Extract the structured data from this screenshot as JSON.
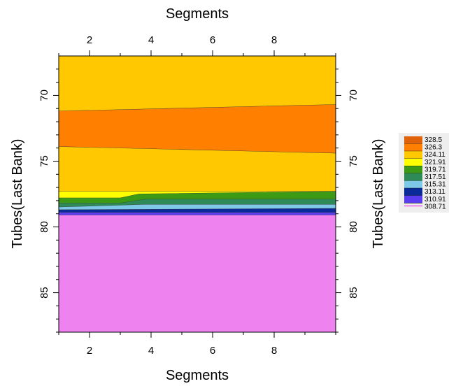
{
  "chart_data": {
    "type": "heatmap",
    "subtype": "filled-contour",
    "xlabel_top": "Segments",
    "xlabel_bottom": "Segments",
    "ylabel_left": "Tubes(Last Bank)",
    "ylabel_right": "Tubes(Last Bank)",
    "x_range": [
      1,
      10
    ],
    "y_range": [
      88,
      67
    ],
    "y_reversed": true,
    "x_ticks": [
      2,
      4,
      6,
      8
    ],
    "x_tick_labels": [
      "2",
      "4",
      "6",
      "8"
    ],
    "y_ticks": [
      70,
      75,
      80,
      85
    ],
    "y_tick_labels": [
      "70",
      "75",
      "80",
      "85"
    ],
    "legend": {
      "placement": "right",
      "levels": [
        {
          "label": "328.5",
          "color": "#e0620a"
        },
        {
          "label": "326.3",
          "color": "#ff8000"
        },
        {
          "label": "324.11",
          "color": "#ffc800"
        },
        {
          "label": "321.91",
          "color": "#ffff00"
        },
        {
          "label": "319.71",
          "color": "#3c9a14"
        },
        {
          "label": "317.51",
          "color": "#2e8b57"
        },
        {
          "label": "315.31",
          "color": "#7ec8e8"
        },
        {
          "label": "313.11",
          "color": "#0a2a9a"
        },
        {
          "label": "310.91",
          "color": "#5a3cf0"
        },
        {
          "label": "308.71",
          "color": "#ee82ee"
        }
      ]
    },
    "bands": [
      {
        "color": "#ffc800",
        "lower": [
          [
            1,
            71.2
          ],
          [
            10,
            70.7
          ]
        ]
      },
      {
        "color": "#ff8000",
        "lower": [
          [
            1,
            73.9
          ],
          [
            10,
            74.4
          ]
        ]
      },
      {
        "color": "#ffc800",
        "lower": [
          [
            1,
            77.3
          ],
          [
            10,
            77.3
          ]
        ]
      },
      {
        "color": "#ffff00",
        "lower": [
          [
            1,
            77.8
          ],
          [
            3,
            77.8
          ],
          [
            3.6,
            77.5
          ],
          [
            10,
            77.3
          ]
        ]
      },
      {
        "color": "#3c9a14",
        "lower": [
          [
            1,
            78.2
          ],
          [
            3,
            78.2
          ],
          [
            3.8,
            77.9
          ],
          [
            10,
            77.9
          ]
        ]
      },
      {
        "color": "#2e8b57",
        "lower": [
          [
            1,
            78.5
          ],
          [
            3.8,
            78.3
          ],
          [
            10,
            78.3
          ]
        ]
      },
      {
        "color": "#7ec8e8",
        "lower": [
          [
            1,
            78.7
          ],
          [
            10,
            78.6
          ]
        ]
      },
      {
        "color": "#0a2a9a",
        "lower": [
          [
            1,
            78.9
          ],
          [
            10,
            78.9
          ]
        ]
      },
      {
        "color": "#5a3cf0",
        "lower": [
          [
            1,
            79.1
          ],
          [
            10,
            79.1
          ]
        ]
      },
      {
        "color": "#ee82ee",
        "lower": [
          [
            1,
            88
          ],
          [
            10,
            88
          ]
        ]
      }
    ]
  }
}
